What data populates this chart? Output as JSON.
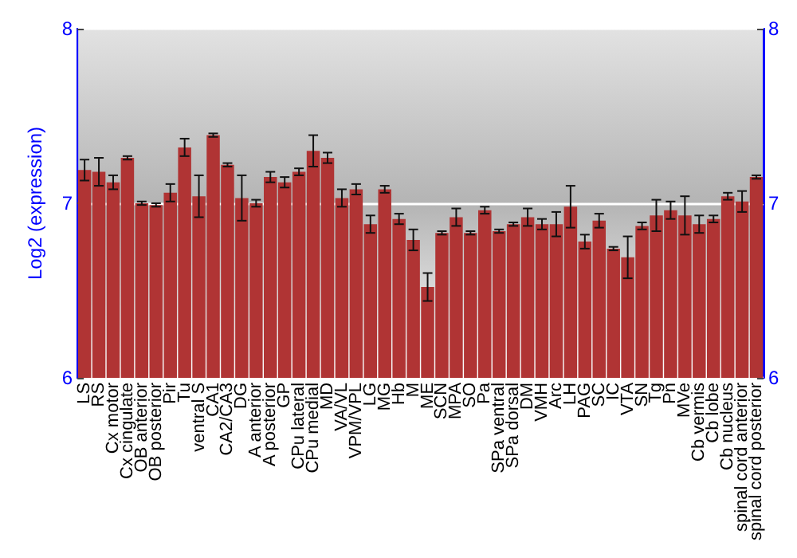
{
  "chart_data": {
    "type": "bar",
    "ylabel": "Log2 (expression)",
    "categories": [
      "LS",
      "RS",
      "Cx motor",
      "Cx cingulate",
      "OB anterior",
      "OB posterior",
      "Pir",
      "Tu",
      "ventral S",
      "CA1",
      "CA2/CA3",
      "DG",
      "A anterior",
      "A posterior",
      "GP",
      "CPu lateral",
      "CPu medial",
      "MD",
      "VA/VL",
      "VPM/VPL",
      "LG",
      "MG",
      "Hb",
      "M",
      "ME",
      "SCN",
      "MPA",
      "SO",
      "Pa",
      "SPa ventral",
      "SPa dorsal",
      "DM",
      "VMH",
      "Arc",
      "LH",
      "PAG",
      "SC",
      "IC",
      "VTA",
      "SN",
      "Tg",
      "Pn",
      "MVe",
      "Cb vermis",
      "Cb lobe",
      "Cb nucleus",
      "spinal cord anterior",
      "spinal cord posterior"
    ],
    "values": [
      7.19,
      7.18,
      7.12,
      7.26,
      7.0,
      6.99,
      7.06,
      7.32,
      7.04,
      7.39,
      7.22,
      7.03,
      7.0,
      7.15,
      7.12,
      7.18,
      7.3,
      7.26,
      7.03,
      7.08,
      6.88,
      7.08,
      6.91,
      6.79,
      6.52,
      6.83,
      6.92,
      6.83,
      6.96,
      6.84,
      6.88,
      6.92,
      6.88,
      6.88,
      6.98,
      6.78,
      6.9,
      6.74,
      6.69,
      6.87,
      6.93,
      6.96,
      6.93,
      6.88,
      6.91,
      7.04,
      7.01,
      7.15
    ],
    "errors": [
      0.06,
      0.08,
      0.04,
      0.01,
      0.01,
      0.01,
      0.05,
      0.05,
      0.12,
      0.01,
      0.01,
      0.13,
      0.02,
      0.03,
      0.03,
      0.02,
      0.09,
      0.03,
      0.05,
      0.03,
      0.05,
      0.02,
      0.03,
      0.06,
      0.08,
      0.01,
      0.05,
      0.01,
      0.02,
      0.01,
      0.01,
      0.05,
      0.03,
      0.07,
      0.12,
      0.04,
      0.04,
      0.01,
      0.12,
      0.02,
      0.09,
      0.05,
      0.11,
      0.05,
      0.02,
      0.02,
      0.06,
      0.01
    ],
    "color": "#b03434",
    "ylim": [
      6,
      8
    ],
    "yticks": [
      6,
      7,
      8
    ],
    "y2lim": [
      6,
      8
    ],
    "y2ticks": [
      6,
      7,
      8
    ],
    "grid": "y"
  }
}
